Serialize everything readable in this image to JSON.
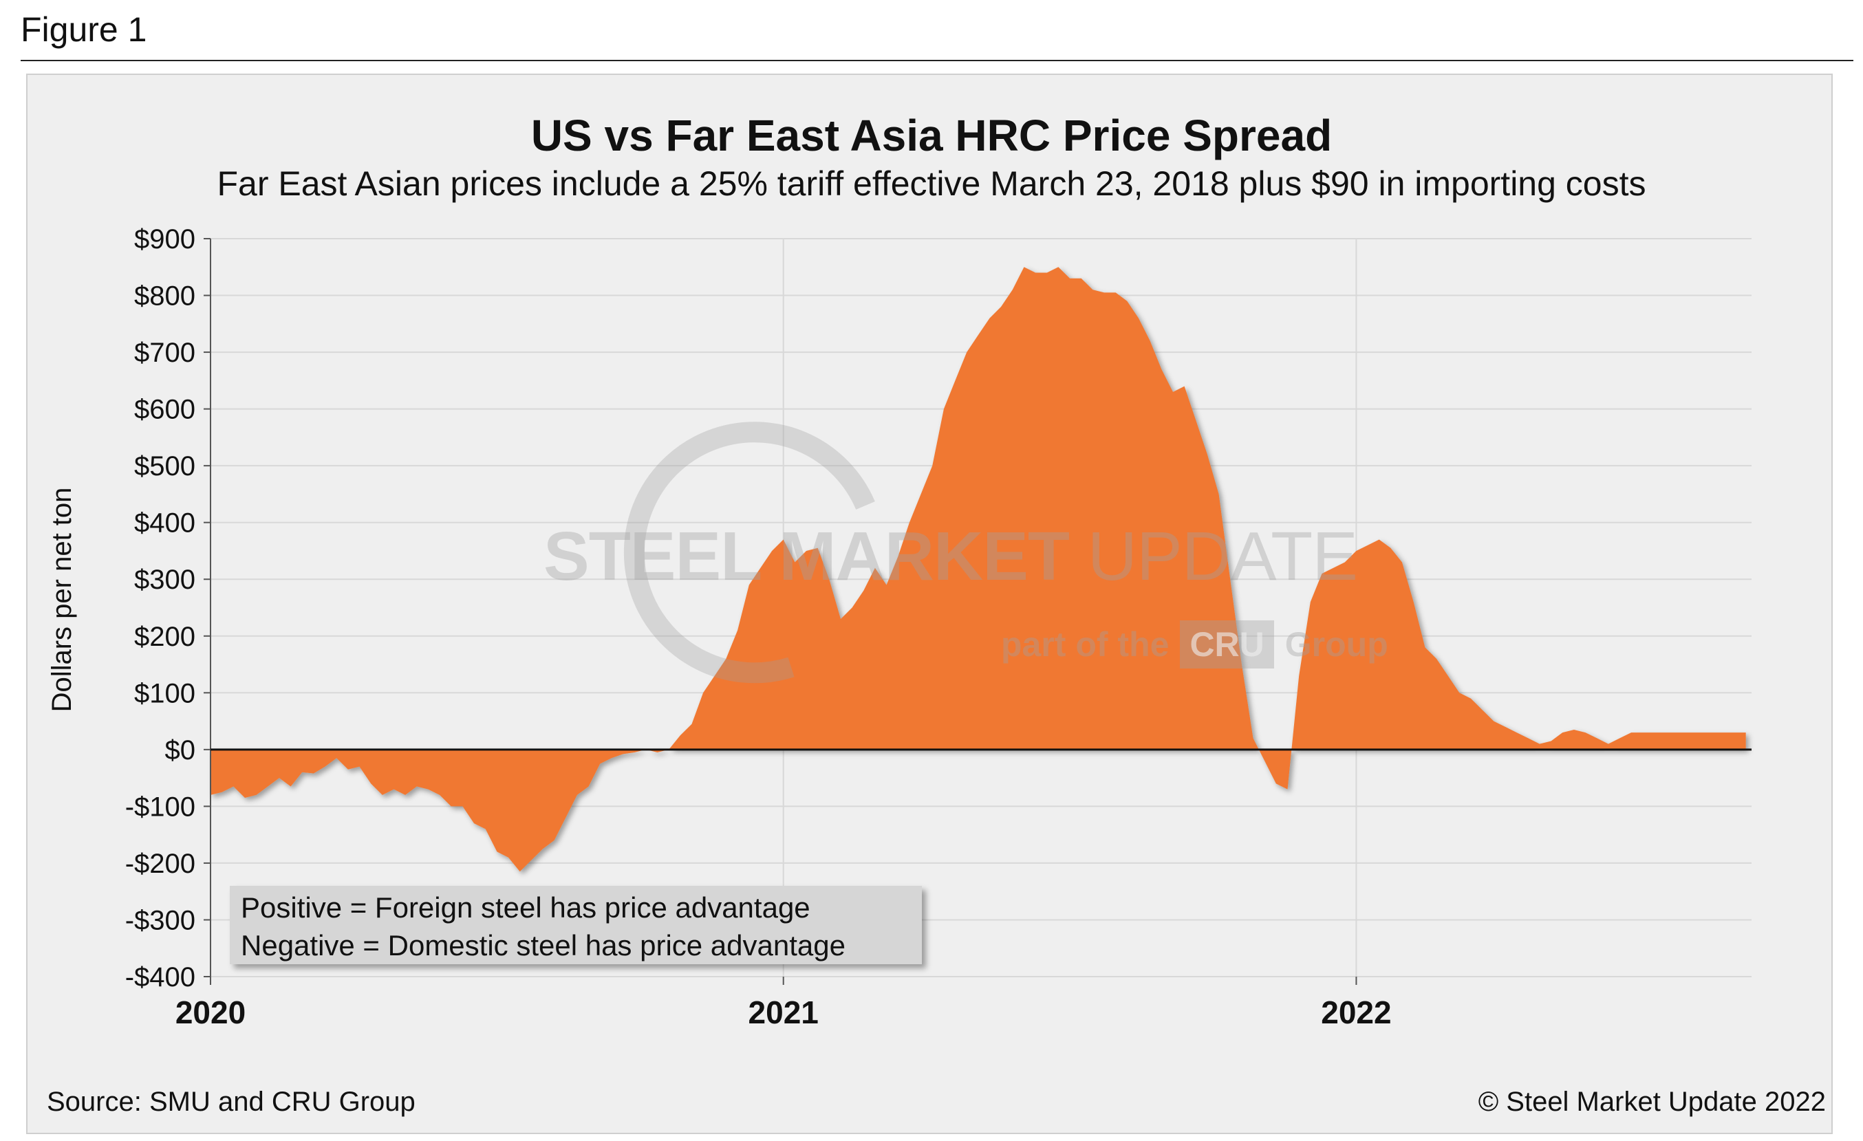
{
  "figure_label": "Figure 1",
  "source": "Source: SMU and CRU Group",
  "copyright": "© Steel Market Update 2022",
  "watermark": {
    "brand_bold": "STEEL MARKET",
    "brand_light": " UPDATE",
    "part_of": "part of the",
    "cru": "CRU",
    "group": "Group"
  },
  "legend": {
    "positive": "Positive = Foreign steel has price advantage",
    "negative": "Negative = Domestic steel has price advantage"
  },
  "colors": {
    "fill": "#F07830",
    "zero_line": "#111111",
    "grid": "#d8d8d8",
    "background": "#efefef"
  },
  "chart_data": {
    "type": "area",
    "title": "US vs Far East Asia HRC Price Spread",
    "subtitle": "Far East Asian prices include a 25% tariff effective March 23, 2018 plus $90 in importing costs",
    "xlabel": "",
    "ylabel": "Dollars per net ton",
    "ylim": [
      -400,
      900
    ],
    "yticks": [
      900,
      800,
      700,
      600,
      500,
      400,
      300,
      200,
      100,
      0,
      -100,
      -200,
      -300,
      -400
    ],
    "ytick_labels": [
      "$900",
      "$800",
      "$700",
      "$600",
      "$500",
      "$400",
      "$300",
      "$200",
      "$100",
      "$0",
      "-$100",
      "-$200",
      "-$300",
      "-$400"
    ],
    "xlim": [
      2020.0,
      2022.69
    ],
    "xticks": [
      2020,
      2021,
      2022
    ],
    "xtick_labels": [
      "2020",
      "2021",
      "2022"
    ],
    "grid": true,
    "series": [
      {
        "name": "US vs Far East Asia HRC Price Spread",
        "x": [
          2020.0,
          2020.02,
          2020.04,
          2020.06,
          2020.08,
          2020.1,
          2020.12,
          2020.14,
          2020.16,
          2020.18,
          2020.2,
          2020.22,
          2020.24,
          2020.26,
          2020.28,
          2020.3,
          2020.32,
          2020.34,
          2020.36,
          2020.38,
          2020.4,
          2020.42,
          2020.44,
          2020.46,
          2020.48,
          2020.5,
          2020.52,
          2020.54,
          2020.56,
          2020.58,
          2020.6,
          2020.62,
          2020.64,
          2020.66,
          2020.68,
          2020.7,
          2020.72,
          2020.74,
          2020.76,
          2020.78,
          2020.8,
          2020.82,
          2020.84,
          2020.86,
          2020.88,
          2020.9,
          2020.92,
          2020.94,
          2020.96,
          2020.98,
          2021.0,
          2021.02,
          2021.04,
          2021.06,
          2021.08,
          2021.1,
          2021.12,
          2021.14,
          2021.16,
          2021.18,
          2021.2,
          2021.22,
          2021.24,
          2021.26,
          2021.28,
          2021.3,
          2021.32,
          2021.34,
          2021.36,
          2021.38,
          2021.4,
          2021.42,
          2021.44,
          2021.46,
          2021.48,
          2021.5,
          2021.52,
          2021.54,
          2021.56,
          2021.58,
          2021.6,
          2021.62,
          2021.64,
          2021.66,
          2021.68,
          2021.7,
          2021.72,
          2021.74,
          2021.76,
          2021.78,
          2021.8,
          2021.82,
          2021.84,
          2021.86,
          2021.88,
          2021.9,
          2021.92,
          2021.94,
          2021.96,
          2021.98,
          2022.0,
          2022.02,
          2022.04,
          2022.06,
          2022.08,
          2022.1,
          2022.12,
          2022.14,
          2022.16,
          2022.18,
          2022.2,
          2022.22,
          2022.24,
          2022.26,
          2022.28,
          2022.3,
          2022.32,
          2022.34,
          2022.36,
          2022.38,
          2022.4,
          2022.42,
          2022.44,
          2022.46,
          2022.48,
          2022.5,
          2022.52,
          2022.54,
          2022.56,
          2022.58,
          2022.6,
          2022.62,
          2022.64,
          2022.66,
          2022.68
        ],
        "values": [
          -80,
          -75,
          -65,
          -85,
          -80,
          -65,
          -50,
          -65,
          -40,
          -42,
          -30,
          -15,
          -35,
          -30,
          -60,
          -80,
          -70,
          -80,
          -65,
          -70,
          -80,
          -100,
          -100,
          -130,
          -140,
          -180,
          -190,
          -215,
          -195,
          -175,
          -160,
          -120,
          -80,
          -65,
          -25,
          -15,
          -8,
          -5,
          0,
          -5,
          0,
          25,
          45,
          100,
          130,
          160,
          210,
          290,
          320,
          350,
          370,
          330,
          350,
          355,
          300,
          230,
          250,
          280,
          320,
          290,
          340,
          400,
          450,
          500,
          600,
          650,
          700,
          730,
          760,
          780,
          810,
          850,
          840,
          840,
          850,
          830,
          830,
          810,
          805,
          805,
          790,
          760,
          720,
          670,
          630,
          640,
          580,
          520,
          450,
          300,
          150,
          20,
          -20,
          -60,
          -70,
          130,
          260,
          310,
          320,
          330,
          350,
          360,
          370,
          355,
          330,
          260,
          180,
          160,
          130,
          100,
          90,
          70,
          50,
          40,
          30,
          20,
          10,
          15,
          30,
          35,
          30,
          20,
          10,
          20,
          30,
          30,
          30,
          30,
          30,
          30,
          30,
          30,
          30,
          30,
          30
        ]
      }
    ]
  }
}
